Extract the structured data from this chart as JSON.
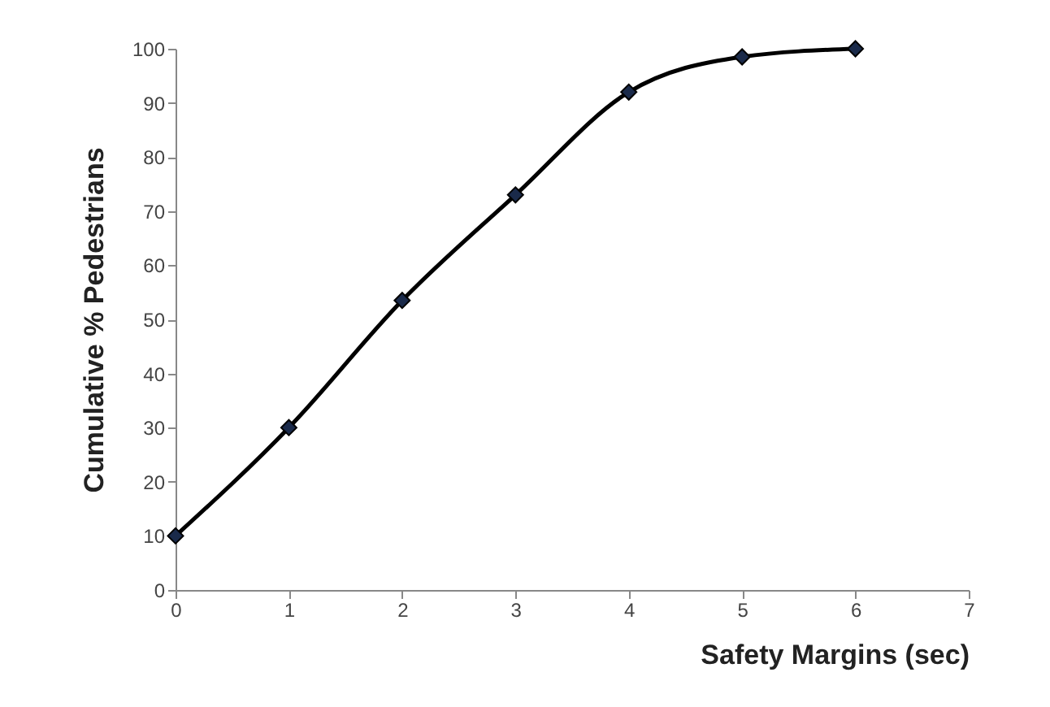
{
  "chart_data": {
    "type": "line",
    "xlabel": "Safety Margins (sec)",
    "ylabel": "Cumulative % Pedestrians",
    "x": [
      0,
      1,
      2,
      3,
      4,
      5,
      6
    ],
    "series": [
      {
        "color": "#000000",
        "values": [
          10,
          30,
          53.5,
          73,
          92,
          98.5,
          100
        ]
      }
    ],
    "xlim": [
      0,
      7
    ],
    "xticks": [
      0,
      1,
      2,
      3,
      4,
      5,
      6,
      7
    ],
    "ylim": [
      0,
      100
    ],
    "yticks": [
      0,
      10,
      20,
      30,
      40,
      50,
      60,
      70,
      80,
      90,
      100
    ],
    "grid": false,
    "marker": "diamond",
    "line_style": "solid"
  }
}
